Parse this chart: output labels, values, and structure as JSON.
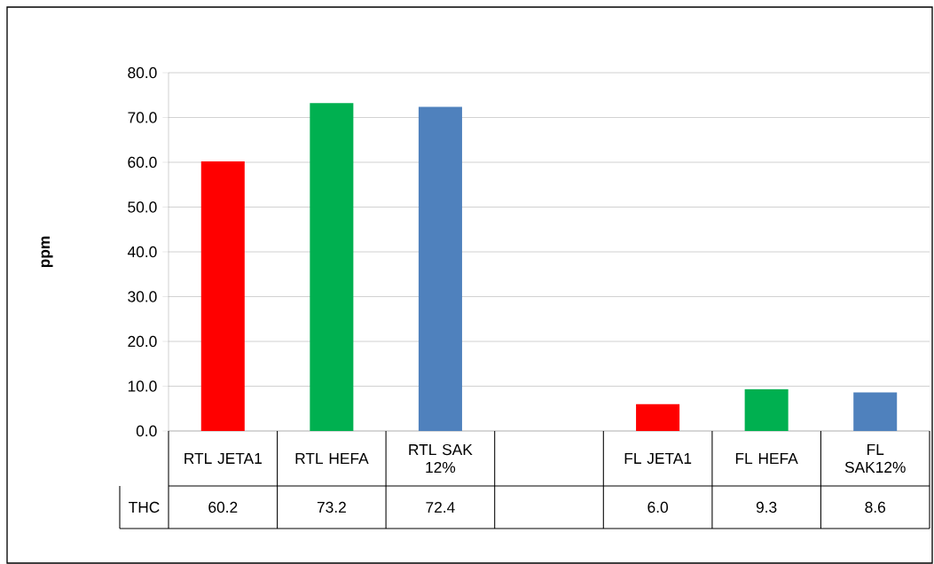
{
  "chart_data": {
    "type": "bar",
    "ylabel": "ppm",
    "categories": [
      "RTL JETA1",
      "RTL HEFA",
      "RTL SAK 12%",
      null,
      "FL JETA1",
      "FL HEFA",
      "FL SAK12%"
    ],
    "series": [
      {
        "name": "THC",
        "values": [
          60.2,
          73.2,
          72.4,
          null,
          6.0,
          9.3,
          8.6
        ],
        "colors": [
          "#ff0000",
          "#00b050",
          "#4f81bd",
          null,
          "#ff0000",
          "#00b050",
          "#4f81bd"
        ],
        "value_labels": [
          "60.2",
          "73.2",
          "72.4",
          null,
          "6.0",
          "9.3",
          "8.6"
        ]
      }
    ],
    "ylim": [
      0,
      80
    ],
    "yticks": [
      {
        "value": 0,
        "label": "0.0"
      },
      {
        "value": 10,
        "label": "10.0"
      },
      {
        "value": 20,
        "label": "20.0"
      },
      {
        "value": 30,
        "label": "30.0"
      },
      {
        "value": 40,
        "label": "40.0"
      },
      {
        "value": 50,
        "label": "50.0"
      },
      {
        "value": 60,
        "label": "60.0"
      },
      {
        "value": 70,
        "label": "70.0"
      },
      {
        "value": 80,
        "label": "80.0"
      }
    ],
    "grid": "y"
  }
}
